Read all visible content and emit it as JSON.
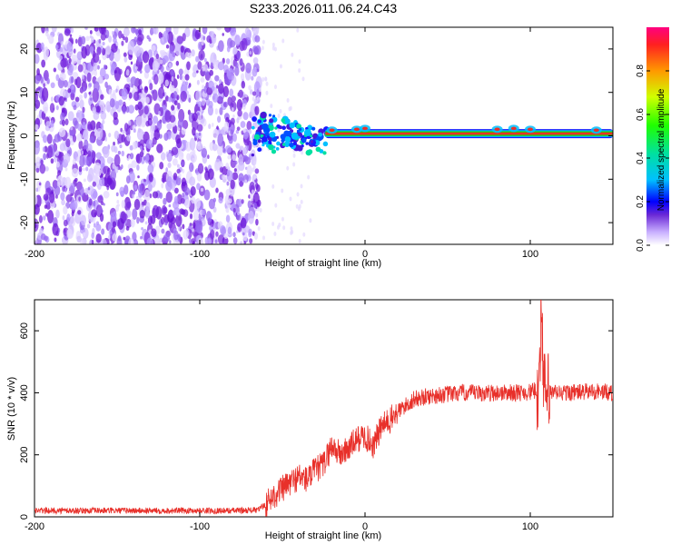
{
  "title": "S233.2026.011.06.24.C43",
  "colors": {
    "snr_line": "#e8302a",
    "scatter": "#7b2fe0",
    "ridge_core": "#e8302a",
    "ridge_mid": "#22d400",
    "ridge_edge": "#1ab0ff"
  },
  "chart_data": [
    {
      "type": "heatmap",
      "xlabel": "Height of straight line (km)",
      "ylabel": "Frequency (Hz)",
      "xlim": [
        -200,
        150
      ],
      "ylim": [
        -25,
        25
      ],
      "xticks": [
        -200,
        -100,
        0,
        100
      ],
      "yticks": [
        -20,
        -10,
        0,
        10,
        20
      ],
      "ridge": {
        "start_km": -68,
        "center_freq_hz": 0.5,
        "dense_noise_region_km": [
          -200,
          -68
        ]
      },
      "colorbar": {
        "label": "Normalized spectral amplitude",
        "range": [
          0,
          1
        ],
        "ticks": [
          "0.0",
          "0.2",
          "0.4",
          "0.6",
          "0.8"
        ]
      }
    },
    {
      "type": "line",
      "xlabel": "Height of straight line (km)",
      "ylabel": "SNR (10 * v/v)",
      "xlim": [
        -200,
        150
      ],
      "ylim": [
        0,
        700
      ],
      "xticks": [
        -200,
        -100,
        0,
        100
      ],
      "yticks": [
        0,
        200,
        400,
        600
      ],
      "series": [
        {
          "name": "SNR",
          "x": [
            -200,
            -150,
            -100,
            -80,
            -65,
            -60,
            -55,
            -50,
            -45,
            -40,
            -35,
            -30,
            -25,
            -20,
            -15,
            -10,
            -5,
            0,
            5,
            10,
            15,
            20,
            25,
            30,
            40,
            50,
            60,
            70,
            80,
            90,
            100,
            105,
            107,
            108,
            110,
            115,
            120,
            130,
            140,
            150
          ],
          "y": [
            20,
            20,
            20,
            20,
            22,
            40,
            70,
            90,
            110,
            130,
            120,
            150,
            170,
            230,
            200,
            220,
            250,
            260,
            230,
            290,
            310,
            340,
            360,
            380,
            390,
            395,
            400,
            398,
            400,
            400,
            402,
            410,
            700,
            400,
            395,
            400,
            400,
            402,
            405,
            400
          ]
        }
      ]
    }
  ]
}
